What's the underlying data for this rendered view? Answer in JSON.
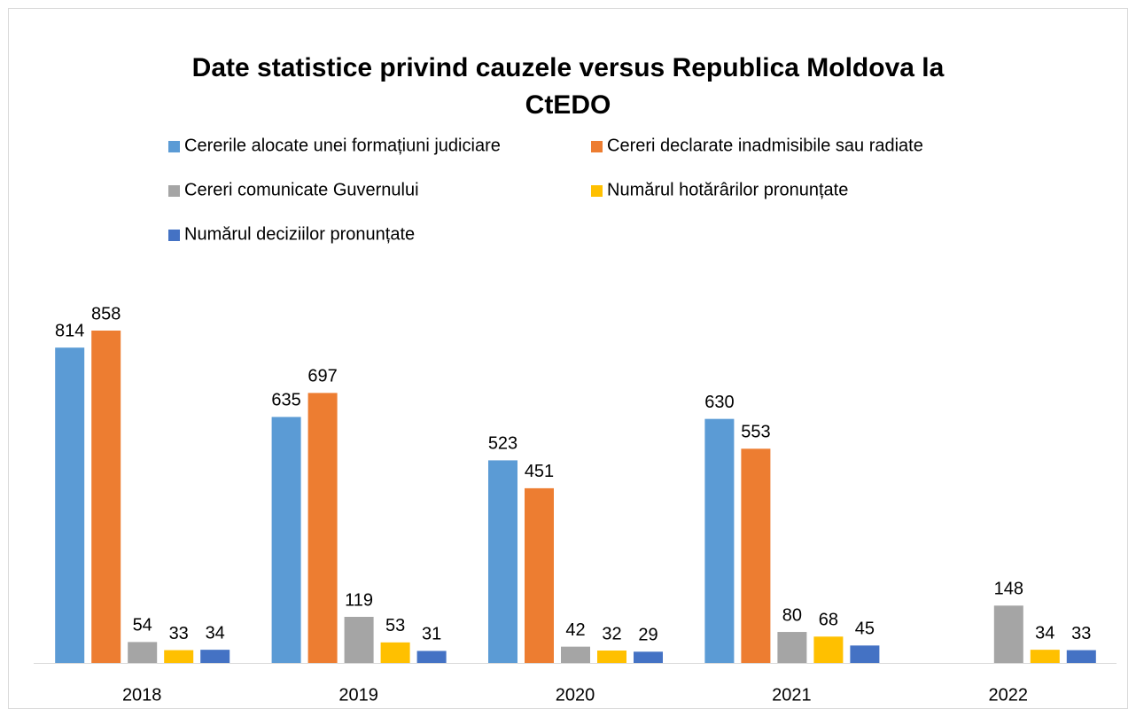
{
  "chart_data": {
    "type": "bar",
    "title": "Date statistice privind cauzele versus Republica Moldova la CtEDO",
    "categories": [
      "2018",
      "2019",
      "2020",
      "2021",
      "2022"
    ],
    "series": [
      {
        "name": "Cererile alocate unei formațiuni judiciare",
        "color": "#5b9bd5",
        "values": [
          814,
          635,
          523,
          630,
          null
        ]
      },
      {
        "name": "Cereri declarate inadmisibile sau radiate",
        "color": "#ed7d31",
        "values": [
          858,
          697,
          451,
          553,
          null
        ]
      },
      {
        "name": "Cereri comunicate Guvernului",
        "color": "#a5a5a5",
        "values": [
          54,
          119,
          42,
          80,
          148
        ]
      },
      {
        "name": "Numărul hotărârilor pronunțate",
        "color": "#ffc000",
        "values": [
          33,
          53,
          32,
          68,
          34
        ]
      },
      {
        "name": "Numărul deciziilor pronunțate",
        "color": "#4472c4",
        "values": [
          34,
          31,
          29,
          45,
          33
        ]
      }
    ]
  }
}
